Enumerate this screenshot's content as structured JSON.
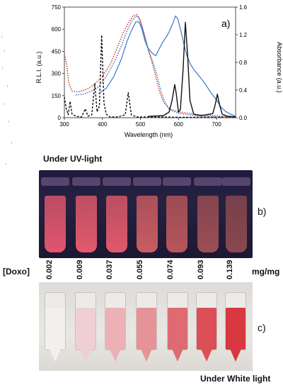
{
  "chart_data": {
    "type": "line",
    "panel_label": "a)",
    "xlabel": "Wavelength (nm)",
    "ylabel_left": "R.L.I. (a.u.)",
    "ylabel_right": "Absorbance (a.u.)",
    "xlim": [
      300,
      750
    ],
    "ylim_left": [
      0,
      750
    ],
    "ylim_right": [
      0,
      1.6
    ],
    "x_ticks": [
      300,
      400,
      500,
      600,
      700
    ],
    "y_ticks_left": [
      0,
      150,
      300,
      450,
      600,
      750
    ],
    "y_ticks_right": [
      "0.0",
      "0.4",
      "0.8",
      "1.2",
      "1.6"
    ],
    "series": [
      {
        "style": "black-dashed",
        "axis": "left",
        "points": [
          [
            300,
            140
          ],
          [
            305,
            60
          ],
          [
            310,
            20
          ],
          [
            315,
            110
          ],
          [
            320,
            25
          ],
          [
            330,
            10
          ],
          [
            345,
            5
          ],
          [
            355,
            60
          ],
          [
            362,
            10
          ],
          [
            372,
            20
          ],
          [
            380,
            230
          ],
          [
            386,
            40
          ],
          [
            392,
            80
          ],
          [
            398,
            560
          ],
          [
            404,
            100
          ],
          [
            410,
            25
          ],
          [
            420,
            5
          ],
          [
            440,
            5
          ],
          [
            460,
            20
          ],
          [
            468,
            170
          ],
          [
            476,
            20
          ],
          [
            490,
            5
          ],
          [
            520,
            5
          ],
          [
            560,
            5
          ],
          [
            600,
            3
          ],
          [
            700,
            3
          ],
          [
            750,
            3
          ]
        ]
      },
      {
        "style": "red-dotted",
        "axis": "left",
        "points": [
          [
            300,
            430
          ],
          [
            306,
            360
          ],
          [
            312,
            230
          ],
          [
            320,
            180
          ],
          [
            335,
            175
          ],
          [
            350,
            185
          ],
          [
            365,
            200
          ],
          [
            380,
            230
          ],
          [
            400,
            280
          ],
          [
            420,
            360
          ],
          [
            440,
            480
          ],
          [
            455,
            580
          ],
          [
            470,
            650
          ],
          [
            480,
            690
          ],
          [
            490,
            700
          ],
          [
            500,
            660
          ],
          [
            510,
            560
          ],
          [
            520,
            460
          ],
          [
            530,
            380
          ],
          [
            540,
            280
          ],
          [
            550,
            180
          ],
          [
            560,
            110
          ],
          [
            575,
            60
          ],
          [
            600,
            40
          ],
          [
            650,
            20
          ],
          [
            700,
            12
          ],
          [
            750,
            8
          ]
        ]
      },
      {
        "style": "blue-dotted",
        "axis": "left",
        "points": [
          [
            330,
            155
          ],
          [
            350,
            160
          ],
          [
            370,
            180
          ],
          [
            390,
            210
          ],
          [
            410,
            280
          ],
          [
            430,
            370
          ],
          [
            450,
            490
          ],
          [
            465,
            590
          ],
          [
            478,
            660
          ],
          [
            488,
            690
          ],
          [
            495,
            680
          ],
          [
            505,
            610
          ],
          [
            515,
            520
          ],
          [
            525,
            430
          ],
          [
            535,
            360
          ],
          [
            545,
            270
          ],
          [
            555,
            170
          ],
          [
            565,
            100
          ],
          [
            580,
            50
          ],
          [
            600,
            30
          ],
          [
            650,
            12
          ],
          [
            700,
            6
          ],
          [
            750,
            4
          ]
        ]
      },
      {
        "style": "blue-solid",
        "axis": "left",
        "points": [
          [
            390,
            165
          ],
          [
            410,
            200
          ],
          [
            430,
            280
          ],
          [
            450,
            400
          ],
          [
            465,
            520
          ],
          [
            478,
            600
          ],
          [
            488,
            650
          ],
          [
            496,
            650
          ],
          [
            504,
            600
          ],
          [
            512,
            520
          ],
          [
            520,
            470
          ],
          [
            530,
            440
          ],
          [
            540,
            420
          ],
          [
            550,
            470
          ],
          [
            558,
            510
          ],
          [
            566,
            540
          ],
          [
            575,
            580
          ],
          [
            585,
            640
          ],
          [
            592,
            690
          ],
          [
            598,
            670
          ],
          [
            606,
            590
          ],
          [
            614,
            500
          ],
          [
            622,
            420
          ],
          [
            632,
            360
          ],
          [
            642,
            320
          ],
          [
            655,
            280
          ],
          [
            670,
            230
          ],
          [
            685,
            170
          ],
          [
            700,
            120
          ],
          [
            712,
            70
          ],
          [
            725,
            40
          ],
          [
            740,
            20
          ],
          [
            750,
            10
          ]
        ]
      },
      {
        "style": "black-solid",
        "axis": "right",
        "points": [
          [
            520,
            0.02
          ],
          [
            560,
            0.03
          ],
          [
            575,
            0.08
          ],
          [
            583,
            0.25
          ],
          [
            590,
            0.48
          ],
          [
            594,
            0.35
          ],
          [
            600,
            0.08
          ],
          [
            605,
            0.12
          ],
          [
            612,
            0.7
          ],
          [
            618,
            1.38
          ],
          [
            624,
            0.9
          ],
          [
            630,
            0.25
          ],
          [
            640,
            0.05
          ],
          [
            660,
            0.03
          ],
          [
            690,
            0.06
          ],
          [
            696,
            0.18
          ],
          [
            702,
            0.34
          ],
          [
            708,
            0.18
          ],
          [
            715,
            0.05
          ],
          [
            730,
            0.02
          ],
          [
            750,
            0.01
          ]
        ]
      }
    ]
  },
  "uv_caption": "Under UV-light",
  "white_caption": "Under White light",
  "panel_b": "b)",
  "panel_c": "c)",
  "doxo_label": "[Doxo]",
  "doxo_unit": "mg/mg",
  "concentrations": [
    "0.002",
    "0.009",
    "0.037",
    "0.055",
    "0.074",
    "0.093",
    "0.139"
  ],
  "colors": {
    "uv_tubes": [
      "#e0566e",
      "#e25a6c",
      "#de5a6a",
      "#c95c62",
      "#b7565a",
      "#9c4e55",
      "#8a484f"
    ],
    "white_tubes": [
      "#f3efef",
      "#efcfd2",
      "#ecb1b5",
      "#e59397",
      "#df6b72",
      "#dc4f56",
      "#d8383f"
    ]
  }
}
